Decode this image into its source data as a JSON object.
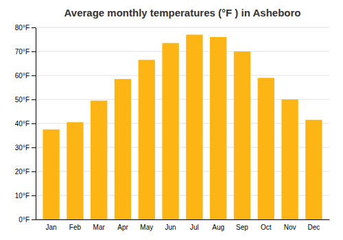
{
  "chart_data": {
    "type": "bar",
    "title": "Average monthly temperatures (°F ) in Asheboro",
    "categories": [
      "Jan",
      "Feb",
      "Mar",
      "Apr",
      "May",
      "Jun",
      "Jul",
      "Aug",
      "Sep",
      "Oct",
      "Nov",
      "Dec"
    ],
    "values": [
      37.5,
      40.5,
      49.5,
      58.5,
      66.5,
      73.5,
      77,
      76,
      70,
      59,
      50,
      41.5
    ],
    "color": "#FDB515",
    "ylim": [
      0,
      80
    ],
    "yticks": [
      {
        "value": 0,
        "label": "0°F"
      },
      {
        "value": 10,
        "label": "10°F"
      },
      {
        "value": 20,
        "label": "20°F"
      },
      {
        "value": 30,
        "label": "30°F"
      },
      {
        "value": 40,
        "label": "40°F"
      },
      {
        "value": 50,
        "label": "50°F"
      },
      {
        "value": 60,
        "label": "60°F"
      },
      {
        "value": 70,
        "label": "70°F"
      },
      {
        "value": 80,
        "label": "80°F"
      }
    ],
    "grid": true
  }
}
